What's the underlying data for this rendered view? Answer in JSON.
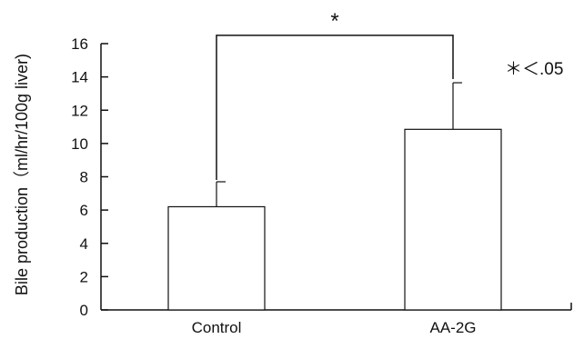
{
  "chart_data": {
    "type": "bar",
    "categories": [
      "Control",
      "AA-2G"
    ],
    "values": [
      6.2,
      10.85
    ],
    "error_upper": [
      7.7,
      13.65
    ],
    "ylabel": "Bile production（ml/hr/100g liver)",
    "ylim": [
      0,
      16
    ],
    "yticks": [
      0,
      2,
      4,
      6,
      8,
      10,
      12,
      14,
      16
    ],
    "yticks_text": [
      "0",
      "2",
      "4",
      "6",
      "8",
      "10",
      "12",
      "14",
      "16"
    ],
    "grid": false,
    "significance": {
      "marker": "*",
      "bracket_top": 16.5,
      "between": [
        "Control",
        "AA-2G"
      ]
    },
    "annotation": "＊＜.05",
    "colors": {
      "bar_fill": "#ffffff",
      "stroke": "#111111"
    }
  }
}
